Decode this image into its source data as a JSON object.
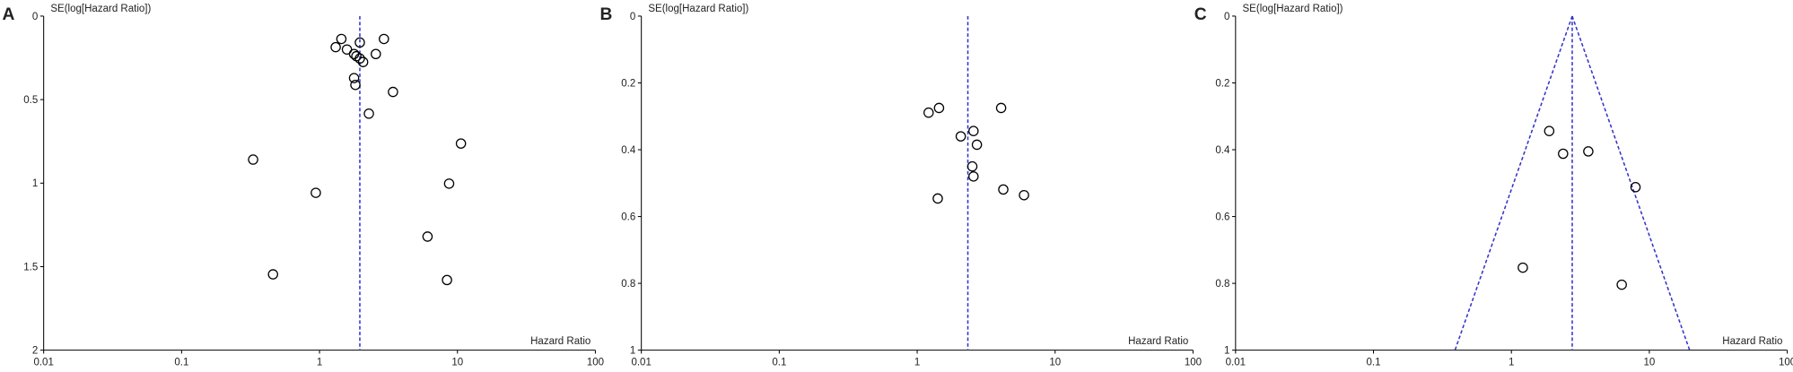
{
  "chart_data": [
    {
      "type": "scatter",
      "panel_label": "A",
      "ylabel": "SE(log[Hazard Ratio])",
      "xlabel": "Hazard Ratio",
      "xscale": "log",
      "yinverted": true,
      "color": "#000000",
      "reference_color": "#3333cc",
      "xlim": [
        0.01,
        100
      ],
      "xticks": [
        0.01,
        0.1,
        1,
        10,
        100
      ],
      "ylim": [
        0,
        2
      ],
      "yticks": [
        0,
        0.5,
        1,
        1.5,
        2
      ],
      "reference_line": 1.96,
      "x": [
        1.44,
        1.31,
        1.58,
        1.96,
        2.93,
        1.78,
        1.85,
        1.96,
        2.07,
        2.56,
        1.78,
        1.82,
        3.41,
        2.28,
        10.6,
        0.33,
        0.94,
        8.7,
        6.07,
        0.46,
        8.4
      ],
      "y": [
        0.137,
        0.186,
        0.2,
        0.158,
        0.137,
        0.227,
        0.24,
        0.254,
        0.275,
        0.227,
        0.371,
        0.412,
        0.454,
        0.584,
        0.763,
        0.859,
        1.058,
        1.003,
        1.32,
        1.546,
        1.58
      ]
    },
    {
      "type": "scatter",
      "panel_label": "B",
      "ylabel": "SE(log[Hazard Ratio])",
      "xlabel": "Hazard Ratio",
      "xscale": "log",
      "yinverted": true,
      "color": "#000000",
      "reference_color": "#3333cc",
      "xlim": [
        0.01,
        100
      ],
      "xticks": [
        0.01,
        0.1,
        1,
        10,
        100
      ],
      "ylim": [
        0,
        1
      ],
      "yticks": [
        0,
        0.2,
        0.4,
        0.6,
        0.8,
        1
      ],
      "reference_line": 2.33,
      "x": [
        1.21,
        1.44,
        4.06,
        2.07,
        2.56,
        2.71,
        2.51,
        2.56,
        1.41,
        4.21,
        5.95
      ],
      "y": [
        0.289,
        0.275,
        0.275,
        0.36,
        0.344,
        0.385,
        0.45,
        0.48,
        0.546,
        0.519,
        0.536
      ]
    },
    {
      "type": "scatter",
      "panel_label": "C",
      "ylabel": "SE(log[Hazard Ratio])",
      "xlabel": "Hazard Ratio",
      "xscale": "log",
      "yinverted": true,
      "color": "#000000",
      "reference_color": "#3333cc",
      "xlim": [
        0.01,
        100
      ],
      "xticks": [
        0.01,
        0.1,
        1,
        10,
        100
      ],
      "ylim": [
        0,
        1
      ],
      "yticks": [
        0,
        0.2,
        0.4,
        0.6,
        0.8,
        1
      ],
      "reference_line": 2.76,
      "funnel_limits": [
        0.39,
        19.6
      ],
      "x": [
        1.88,
        2.37,
        3.61,
        7.94,
        1.21,
        6.31
      ],
      "y": [
        0.344,
        0.412,
        0.405,
        0.512,
        0.753,
        0.804
      ]
    }
  ]
}
